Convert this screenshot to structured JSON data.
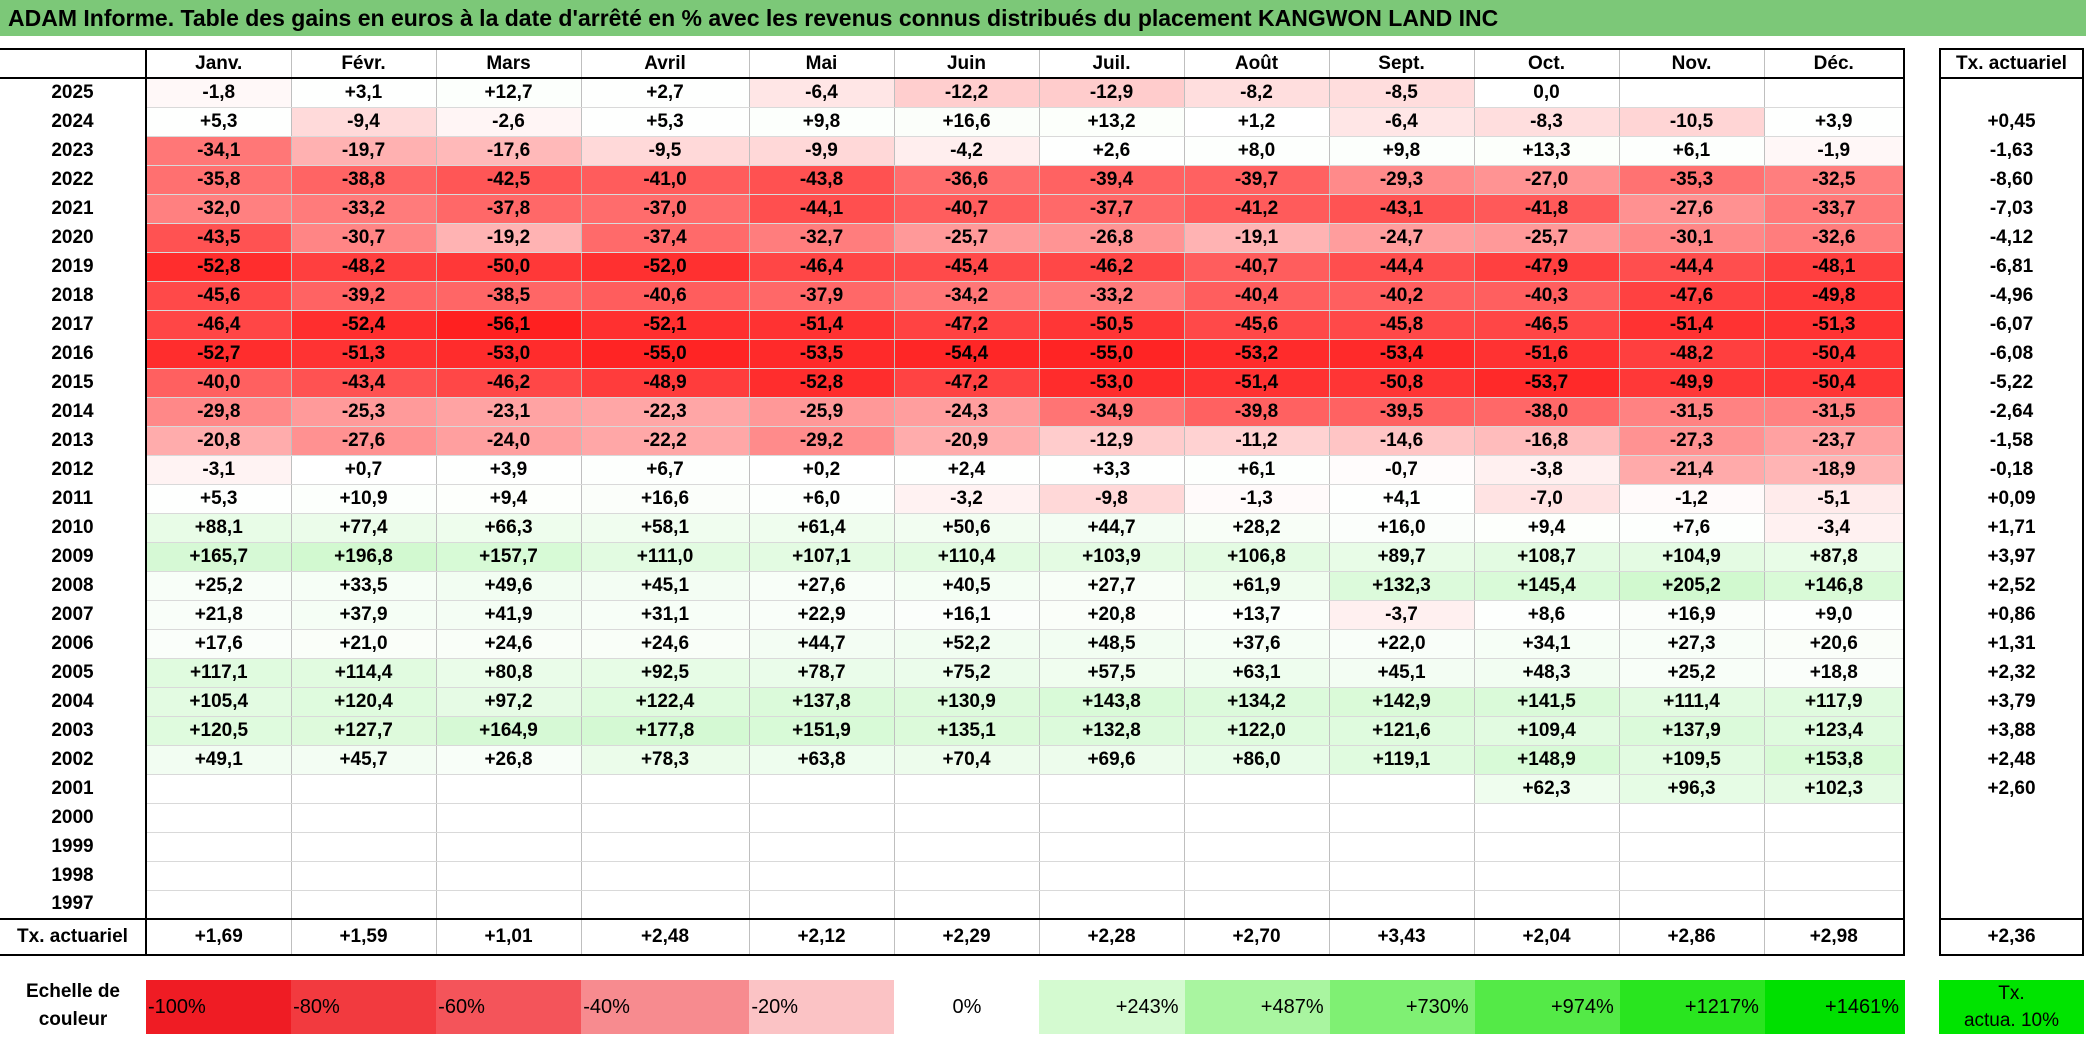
{
  "title": "ADAM Informe. Table des gains en euros à la date d'arrêté en % avec les revenus connus distribués du placement KANGWON LAND INC",
  "months": [
    "Janv.",
    "Févr.",
    "Mars",
    "Avril",
    "Mai",
    "Juin",
    "Juil.",
    "Août",
    "Sept.",
    "Oct.",
    "Nov.",
    "Déc."
  ],
  "side_header": "Tx. actuariel",
  "rows": [
    {
      "year": "2025",
      "values": [
        "-1,8",
        "+3,1",
        "+12,7",
        "+2,7",
        "-6,4",
        "-12,2",
        "-12,9",
        "-8,2",
        "-8,5",
        "0,0",
        "",
        ""
      ],
      "rate": ""
    },
    {
      "year": "2024",
      "values": [
        "+5,3",
        "-9,4",
        "-2,6",
        "+5,3",
        "+9,8",
        "+16,6",
        "+13,2",
        "+1,2",
        "-6,4",
        "-8,3",
        "-10,5",
        "+3,9"
      ],
      "rate": "+0,45"
    },
    {
      "year": "2023",
      "values": [
        "-34,1",
        "-19,7",
        "-17,6",
        "-9,5",
        "-9,9",
        "-4,2",
        "+2,6",
        "+8,0",
        "+9,8",
        "+13,3",
        "+6,1",
        "-1,9"
      ],
      "rate": "-1,63"
    },
    {
      "year": "2022",
      "values": [
        "-35,8",
        "-38,8",
        "-42,5",
        "-41,0",
        "-43,8",
        "-36,6",
        "-39,4",
        "-39,7",
        "-29,3",
        "-27,0",
        "-35,3",
        "-32,5"
      ],
      "rate": "-8,60"
    },
    {
      "year": "2021",
      "values": [
        "-32,0",
        "-33,2",
        "-37,8",
        "-37,0",
        "-44,1",
        "-40,7",
        "-37,7",
        "-41,2",
        "-43,1",
        "-41,8",
        "-27,6",
        "-33,7"
      ],
      "rate": "-7,03"
    },
    {
      "year": "2020",
      "values": [
        "-43,5",
        "-30,7",
        "-19,2",
        "-37,4",
        "-32,7",
        "-25,7",
        "-26,8",
        "-19,1",
        "-24,7",
        "-25,7",
        "-30,1",
        "-32,6"
      ],
      "rate": "-4,12"
    },
    {
      "year": "2019",
      "values": [
        "-52,8",
        "-48,2",
        "-50,0",
        "-52,0",
        "-46,4",
        "-45,4",
        "-46,2",
        "-40,7",
        "-44,4",
        "-47,9",
        "-44,4",
        "-48,1"
      ],
      "rate": "-6,81"
    },
    {
      "year": "2018",
      "values": [
        "-45,6",
        "-39,2",
        "-38,5",
        "-40,6",
        "-37,9",
        "-34,2",
        "-33,2",
        "-40,4",
        "-40,2",
        "-40,3",
        "-47,6",
        "-49,8"
      ],
      "rate": "-4,96"
    },
    {
      "year": "2017",
      "values": [
        "-46,4",
        "-52,4",
        "-56,1",
        "-52,1",
        "-51,4",
        "-47,2",
        "-50,5",
        "-45,6",
        "-45,8",
        "-46,5",
        "-51,4",
        "-51,3"
      ],
      "rate": "-6,07"
    },
    {
      "year": "2016",
      "values": [
        "-52,7",
        "-51,3",
        "-53,0",
        "-55,0",
        "-53,5",
        "-54,4",
        "-55,0",
        "-53,2",
        "-53,4",
        "-51,6",
        "-48,2",
        "-50,4"
      ],
      "rate": "-6,08"
    },
    {
      "year": "2015",
      "values": [
        "-40,0",
        "-43,4",
        "-46,2",
        "-48,9",
        "-52,8",
        "-47,2",
        "-53,0",
        "-51,4",
        "-50,8",
        "-53,7",
        "-49,9",
        "-50,4"
      ],
      "rate": "-5,22"
    },
    {
      "year": "2014",
      "values": [
        "-29,8",
        "-25,3",
        "-23,1",
        "-22,3",
        "-25,9",
        "-24,3",
        "-34,9",
        "-39,8",
        "-39,5",
        "-38,0",
        "-31,5",
        "-31,5"
      ],
      "rate": "-2,64"
    },
    {
      "year": "2013",
      "values": [
        "-20,8",
        "-27,6",
        "-24,0",
        "-22,2",
        "-29,2",
        "-20,9",
        "-12,9",
        "-11,2",
        "-14,6",
        "-16,8",
        "-27,3",
        "-23,7"
      ],
      "rate": "-1,58"
    },
    {
      "year": "2012",
      "values": [
        "-3,1",
        "+0,7",
        "+3,9",
        "+6,7",
        "+0,2",
        "+2,4",
        "+3,3",
        "+6,1",
        "-0,7",
        "-3,8",
        "-21,4",
        "-18,9"
      ],
      "rate": "-0,18"
    },
    {
      "year": "2011",
      "values": [
        "+5,3",
        "+10,9",
        "+9,4",
        "+16,6",
        "+6,0",
        "-3,2",
        "-9,8",
        "-1,3",
        "+4,1",
        "-7,0",
        "-1,2",
        "-5,1"
      ],
      "rate": "+0,09"
    },
    {
      "year": "2010",
      "values": [
        "+88,1",
        "+77,4",
        "+66,3",
        "+58,1",
        "+61,4",
        "+50,6",
        "+44,7",
        "+28,2",
        "+16,0",
        "+9,4",
        "+7,6",
        "-3,4"
      ],
      "rate": "+1,71"
    },
    {
      "year": "2009",
      "values": [
        "+165,7",
        "+196,8",
        "+157,7",
        "+111,0",
        "+107,1",
        "+110,4",
        "+103,9",
        "+106,8",
        "+89,7",
        "+108,7",
        "+104,9",
        "+87,8"
      ],
      "rate": "+3,97"
    },
    {
      "year": "2008",
      "values": [
        "+25,2",
        "+33,5",
        "+49,6",
        "+45,1",
        "+27,6",
        "+40,5",
        "+27,7",
        "+61,9",
        "+132,3",
        "+145,4",
        "+205,2",
        "+146,8"
      ],
      "rate": "+2,52"
    },
    {
      "year": "2007",
      "values": [
        "+21,8",
        "+37,9",
        "+41,9",
        "+31,1",
        "+22,9",
        "+16,1",
        "+20,8",
        "+13,7",
        "-3,7",
        "+8,6",
        "+16,9",
        "+9,0"
      ],
      "rate": "+0,86"
    },
    {
      "year": "2006",
      "values": [
        "+17,6",
        "+21,0",
        "+24,6",
        "+24,6",
        "+44,7",
        "+52,2",
        "+48,5",
        "+37,6",
        "+22,0",
        "+34,1",
        "+27,3",
        "+20,6"
      ],
      "rate": "+1,31"
    },
    {
      "year": "2005",
      "values": [
        "+117,1",
        "+114,4",
        "+80,8",
        "+92,5",
        "+78,7",
        "+75,2",
        "+57,5",
        "+63,1",
        "+45,1",
        "+48,3",
        "+25,2",
        "+18,8"
      ],
      "rate": "+2,32"
    },
    {
      "year": "2004",
      "values": [
        "+105,4",
        "+120,4",
        "+97,2",
        "+122,4",
        "+137,8",
        "+130,9",
        "+143,8",
        "+134,2",
        "+142,9",
        "+141,5",
        "+111,4",
        "+117,9"
      ],
      "rate": "+3,79"
    },
    {
      "year": "2003",
      "values": [
        "+120,5",
        "+127,7",
        "+164,9",
        "+177,8",
        "+151,9",
        "+135,1",
        "+132,8",
        "+122,0",
        "+121,6",
        "+109,4",
        "+137,9",
        "+123,4"
      ],
      "rate": "+3,88"
    },
    {
      "year": "2002",
      "values": [
        "+49,1",
        "+45,7",
        "+26,8",
        "+78,3",
        "+63,8",
        "+70,4",
        "+69,6",
        "+86,0",
        "+119,1",
        "+148,9",
        "+109,5",
        "+153,8"
      ],
      "rate": "+2,48"
    },
    {
      "year": "2001",
      "values": [
        "",
        "",
        "",
        "",
        "",
        "",
        "",
        "",
        "",
        "+62,3",
        "+96,3",
        "+102,3"
      ],
      "rate": "+2,60"
    },
    {
      "year": "2000",
      "values": [
        "",
        "",
        "",
        "",
        "",
        "",
        "",
        "",
        "",
        "",
        "",
        ""
      ],
      "rate": ""
    },
    {
      "year": "1999",
      "values": [
        "",
        "",
        "",
        "",
        "",
        "",
        "",
        "",
        "",
        "",
        "",
        ""
      ],
      "rate": ""
    },
    {
      "year": "1998",
      "values": [
        "",
        "",
        "",
        "",
        "",
        "",
        "",
        "",
        "",
        "",
        "",
        ""
      ],
      "rate": ""
    },
    {
      "year": "1997",
      "values": [
        "",
        "",
        "",
        "",
        "",
        "",
        "",
        "",
        "",
        "",
        "",
        ""
      ],
      "rate": ""
    }
  ],
  "footer": {
    "label": "Tx. actuariel",
    "values": [
      "+1,69",
      "+1,59",
      "+1,01",
      "+2,48",
      "+2,12",
      "+2,29",
      "+2,28",
      "+2,70",
      "+3,43",
      "+2,04",
      "+2,86",
      "+2,98"
    ],
    "total": "+2,36"
  },
  "scale": {
    "label_line1": "Echelle de",
    "label_line2": "couleur",
    "items": [
      {
        "text": "-100%",
        "color": "#ef1c24"
      },
      {
        "text": "-80%",
        "color": "#f23a3f"
      },
      {
        "text": "-60%",
        "color": "#f4545a"
      },
      {
        "text": "-40%",
        "color": "#f78b8f"
      },
      {
        "text": "-20%",
        "color": "#fbc3c5"
      },
      {
        "text": "0%",
        "color": "#ffffff"
      },
      {
        "text": "+243%",
        "color": "#d4fad0"
      },
      {
        "text": "+487%",
        "color": "#a9f5a0"
      },
      {
        "text": "+730%",
        "color": "#7ff073"
      },
      {
        "text": "+974%",
        "color": "#54ea47"
      },
      {
        "text": "+1217%",
        "color": "#29e51f"
      },
      {
        "text": "+1461%",
        "color": "#00e000"
      }
    ],
    "side_line1": "Tx.",
    "side_line2": "actua. 10%",
    "side_color": "#00e400"
  }
}
